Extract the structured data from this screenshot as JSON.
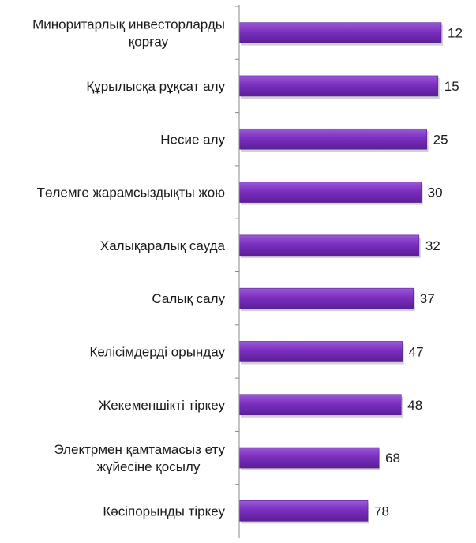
{
  "chart_data": {
    "type": "bar",
    "orientation": "horizontal",
    "title": "",
    "xlabel": "",
    "ylabel": "",
    "categories": [
      "Миноритарлық инвесторларды қорғау",
      "Құрылысқа рұқсат алу",
      "Несие алу",
      "Төлемге жарамсыздықты жою",
      "Халықаралық сауда",
      "Салық салу",
      "Келісімдерді орындау",
      "Жекеменшікті тіркеу",
      "Электрмен қамтамасыз ету жүйесіне қосылу",
      "Кәсіпорынды тіркеу"
    ],
    "category_lines": [
      [
        "Миноритарлық инвесторларды",
        "қорғау"
      ],
      [
        "Құрылысқа рұқсат алу"
      ],
      [
        "Несие алу"
      ],
      [
        "Төлемге жарамсыздықты жою"
      ],
      [
        "Халықаралық сауда"
      ],
      [
        "Салық салу"
      ],
      [
        "Келісімдерді орындау"
      ],
      [
        "Жекеменшікті тіркеу"
      ],
      [
        "Электрмен қамтамасыз ету",
        "жүйесіне қосылу"
      ],
      [
        "Кәсіпорынды тіркеу"
      ]
    ],
    "values": [
      12,
      15,
      25,
      30,
      32,
      37,
      47,
      48,
      68,
      78
    ],
    "data_labels": true,
    "bar_color": "#7b2fbf",
    "bar_color_light": "#9b59d6",
    "bar_color_dark": "#5a1f96",
    "axis_color": "#888888",
    "grid": false,
    "legend": "none"
  }
}
